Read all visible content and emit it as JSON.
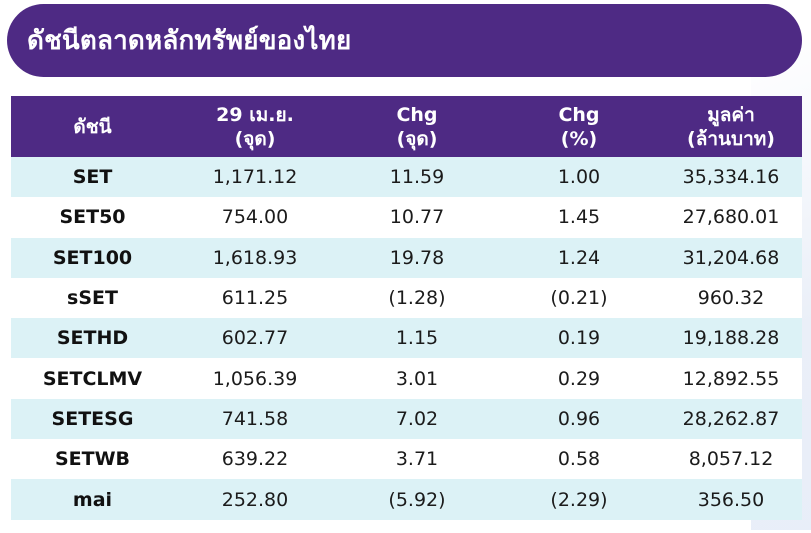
{
  "title": "ดัชนีตลาดหลักทรัพย์ของไทย",
  "colors": {
    "header_bg": "#4e2a84",
    "header_text": "#ffffff",
    "row_alt_bg": "#dcf2f6"
  },
  "table": {
    "headers": [
      {
        "line1": "ดัชนี",
        "line2": ""
      },
      {
        "line1": "29 เม.ย.",
        "line2": "(จุด)"
      },
      {
        "line1": "Chg",
        "line2": "(จุด)"
      },
      {
        "line1": "Chg",
        "line2": "(%)"
      },
      {
        "line1": "มูลค่า",
        "line2": "(ล้านบาท)"
      }
    ],
    "rows": [
      [
        "SET",
        "1,171.12",
        "11.59",
        "1.00",
        "35,334.16"
      ],
      [
        "SET50",
        "754.00",
        "10.77",
        "1.45",
        "27,680.01"
      ],
      [
        "SET100",
        "1,618.93",
        "19.78",
        "1.24",
        "31,204.68"
      ],
      [
        "sSET",
        "611.25",
        "(1.28)",
        "(0.21)",
        "960.32"
      ],
      [
        "SETHD",
        "602.77",
        "1.15",
        "0.19",
        "19,188.28"
      ],
      [
        "SETCLMV",
        "1,056.39",
        "3.01",
        "0.29",
        "12,892.55"
      ],
      [
        "SETESG",
        "741.58",
        "7.02",
        "0.96",
        "28,262.87"
      ],
      [
        "SETWB",
        "639.22",
        "3.71",
        "0.58",
        "8,057.12"
      ],
      [
        "mai",
        "252.80",
        "(5.92)",
        "(2.29)",
        "356.50"
      ]
    ]
  }
}
